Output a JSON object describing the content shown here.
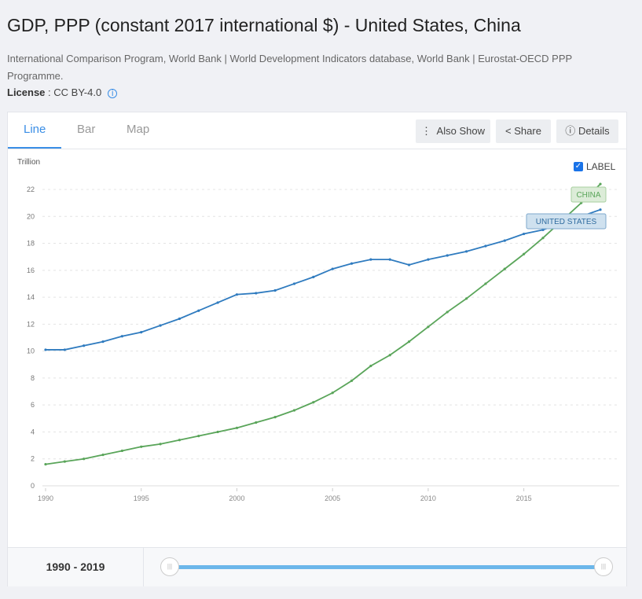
{
  "title": "GDP, PPP (constant 2017 international $) - United States, China",
  "source": "International Comparison Program, World Bank | World Development Indicators database, World Bank | Eurostat-OECD PPP Programme.",
  "license_label": "License",
  "license_value": ": CC BY-4.0",
  "tabs": [
    "Line",
    "Bar",
    "Map"
  ],
  "buttons": {
    "also_show": "Also Show",
    "share": "Share",
    "details": "Details"
  },
  "label_toggle": "LABEL",
  "range_start": "1990",
  "range_sep": " - ",
  "range_end": "2019",
  "colors": {
    "us": "#2f7bbf",
    "china": "#5aa55a",
    "accent": "#3a8ee6"
  },
  "chart_data": {
    "type": "line",
    "ylabel": "Trillion",
    "ylim": [
      0,
      22
    ],
    "yticks": [
      0,
      2,
      4,
      6,
      8,
      10,
      12,
      14,
      16,
      18,
      20,
      22
    ],
    "xticks": [
      1990,
      1995,
      2000,
      2005,
      2010,
      2015
    ],
    "xlim": [
      1990,
      2019
    ],
    "x": [
      1990,
      1991,
      1992,
      1993,
      1994,
      1995,
      1996,
      1997,
      1998,
      1999,
      2000,
      2001,
      2002,
      2003,
      2004,
      2005,
      2006,
      2007,
      2008,
      2009,
      2010,
      2011,
      2012,
      2013,
      2014,
      2015,
      2016,
      2017,
      2018,
      2019
    ],
    "series": [
      {
        "name": "UNITED STATES",
        "values": [
          10.1,
          10.1,
          10.4,
          10.7,
          11.1,
          11.4,
          11.9,
          12.4,
          13.0,
          13.6,
          14.2,
          14.3,
          14.5,
          15.0,
          15.5,
          16.1,
          16.5,
          16.8,
          16.8,
          16.4,
          16.8,
          17.1,
          17.4,
          17.8,
          18.2,
          18.7,
          19.0,
          19.5,
          20.0,
          20.5
        ]
      },
      {
        "name": "CHINA",
        "values": [
          1.6,
          1.8,
          2.0,
          2.3,
          2.6,
          2.9,
          3.1,
          3.4,
          3.7,
          4.0,
          4.3,
          4.7,
          5.1,
          5.6,
          6.2,
          6.9,
          7.8,
          8.9,
          9.7,
          10.7,
          11.8,
          12.9,
          13.9,
          15.0,
          16.1,
          17.2,
          18.4,
          19.7,
          21.0,
          22.4
        ]
      }
    ],
    "grid": true
  }
}
